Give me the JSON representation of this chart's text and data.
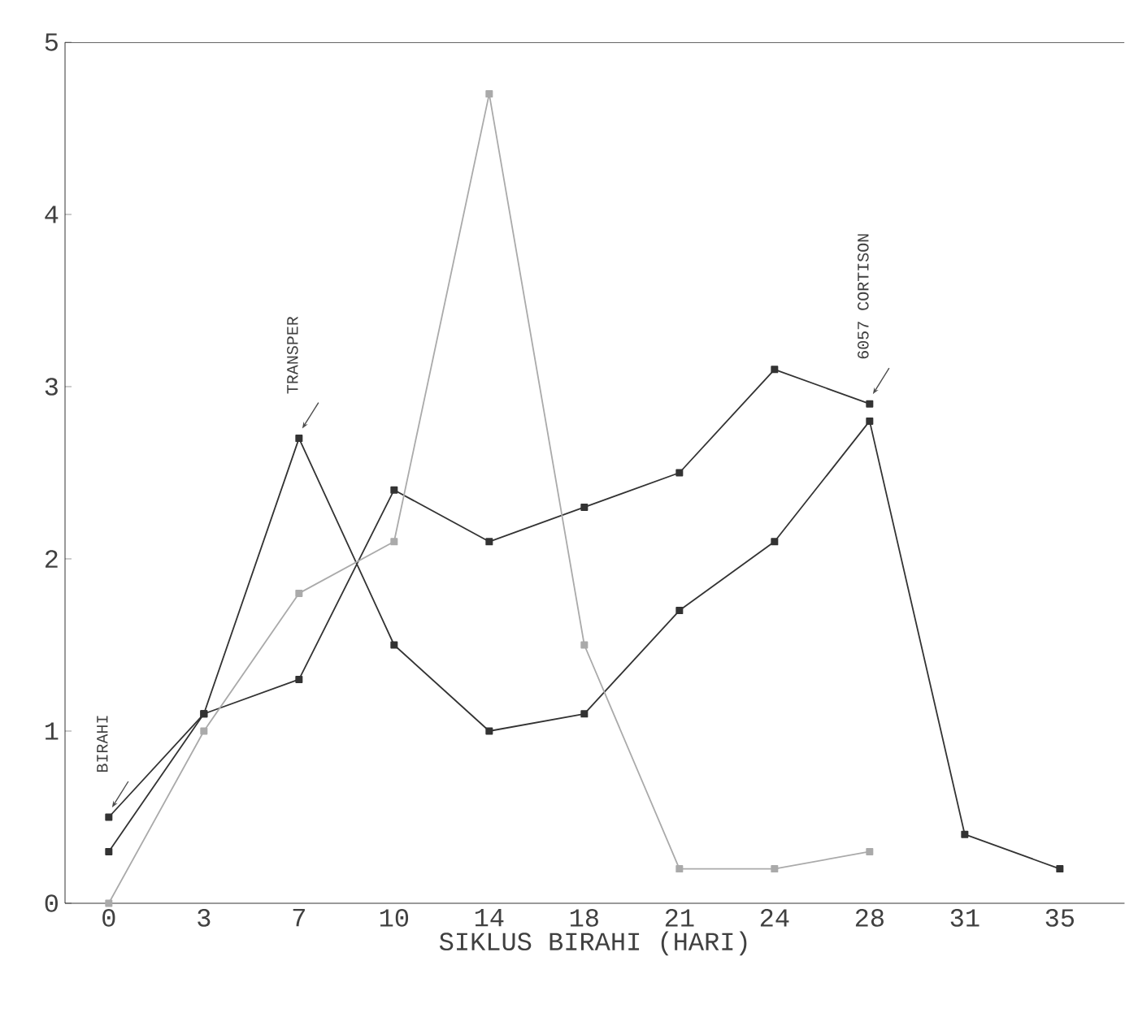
{
  "chart_data": {
    "type": "line",
    "xlabel": "SIKLUS BIRAHI (HARI)",
    "categories": [
      "0",
      "3",
      "7",
      "10",
      "14",
      "18",
      "21",
      "24",
      "28",
      "31",
      "35"
    ],
    "series": [
      {
        "color": "#333333",
        "values": [
          0.3,
          1.1,
          2.7,
          1.5,
          1.0,
          1.1,
          1.7,
          2.1,
          2.8,
          0.4,
          0.2
        ]
      },
      {
        "color": "#333333",
        "values": [
          0.5,
          1.1,
          1.3,
          2.4,
          2.1,
          2.3,
          2.5,
          3.1,
          2.9,
          null,
          null
        ]
      },
      {
        "color": "#aaaaaa",
        "values": [
          0.0,
          1.0,
          1.8,
          2.1,
          4.7,
          1.5,
          0.2,
          0.2,
          0.3,
          null,
          null
        ]
      }
    ],
    "ylim": [
      0,
      5
    ],
    "yticks": [
      0,
      1,
      2,
      3,
      4,
      5
    ],
    "marker": "square",
    "annotations": [
      {
        "text": "BIRAHI",
        "x": "0",
        "y": 0.5
      },
      {
        "text": "TRANSPER",
        "x": "7",
        "y": 2.7
      },
      {
        "text": "6057 CORTISON",
        "x": "28",
        "y": 2.9
      }
    ]
  }
}
